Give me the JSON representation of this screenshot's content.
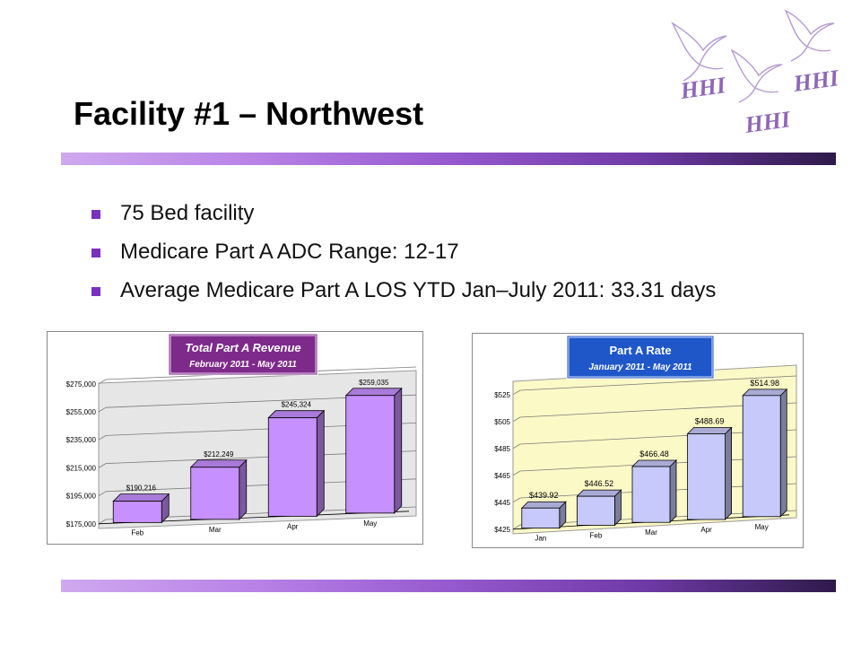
{
  "slide": {
    "title": "Facility #1 – Northwest",
    "bullets": [
      "75 Bed facility",
      "Medicare Part A ADC Range: 12-17",
      "Average Medicare Part A LOS YTD Jan–July 2011: 33.31 days"
    ]
  },
  "logo": {
    "text": "HHI",
    "icon": "dove-icon",
    "color": "#8f67b8"
  },
  "colors": {
    "accent": "#7b2fbf",
    "chart1_bar": "#c790ff",
    "chart2_bar": "#c7c9fb",
    "chart2_wall": "#fbf9c6"
  },
  "chart_data": [
    {
      "type": "bar",
      "title": "Total Part A Revenue",
      "subtitle": "February 2011 - May 2011",
      "categories": [
        "Feb",
        "Mar",
        "Apr",
        "May"
      ],
      "values": [
        190216,
        212249,
        245324,
        259035
      ],
      "value_labels": [
        "$190,216",
        "$212,249",
        "$245,324",
        "$259,035"
      ],
      "ylim": [
        175000,
        275000
      ],
      "yticks": [
        "$175,000",
        "$195,000",
        "$215,000",
        "$235,000",
        "$255,000",
        "$275,000"
      ],
      "xlabel": "",
      "ylabel": "",
      "grid": true,
      "legend": "none"
    },
    {
      "type": "bar",
      "title": "Part A Rate",
      "subtitle": "January 2011 - May 2011",
      "categories": [
        "Jan",
        "Feb",
        "Mar",
        "Apr",
        "May"
      ],
      "values": [
        439.92,
        446.52,
        466.48,
        488.69,
        514.98
      ],
      "value_labels": [
        "$439.92",
        "$446.52",
        "$466.48",
        "$488.69",
        "$514.98"
      ],
      "ylim": [
        425,
        525
      ],
      "yticks": [
        "$425",
        "$445",
        "$465",
        "$485",
        "$505",
        "$525"
      ],
      "xlabel": "",
      "ylabel": "",
      "grid": true,
      "legend": "none"
    }
  ]
}
